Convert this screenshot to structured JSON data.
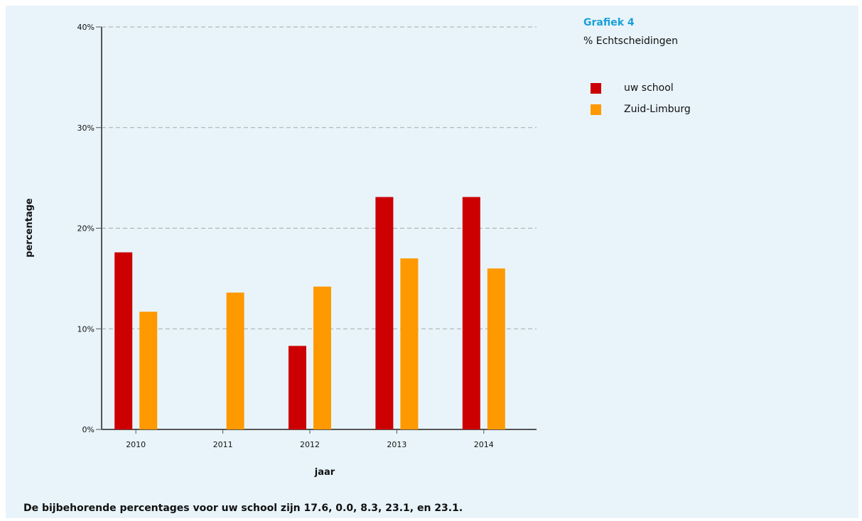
{
  "side": {
    "title": "Grafiek 4",
    "subtitle": "% Echtscheidingen"
  },
  "legend": [
    {
      "label": "uw school",
      "color": "#cc0000"
    },
    {
      "label": "Zuid-Limburg",
      "color": "#ff9900"
    }
  ],
  "footnote": "De bijbehorende percentages voor uw school zijn 17.6, 0.0, 8.3, 23.1, en 23.1.",
  "chart_data": {
    "type": "bar",
    "categories": [
      "2010",
      "2011",
      "2012",
      "2013",
      "2014"
    ],
    "series": [
      {
        "name": "uw school",
        "color": "#cc0000",
        "values": [
          17.6,
          0.0,
          8.3,
          23.1,
          23.1
        ]
      },
      {
        "name": "Zuid-Limburg",
        "color": "#ff9900",
        "values": [
          11.7,
          13.6,
          14.2,
          17.0,
          16.0
        ]
      }
    ],
    "xlabel": "jaar",
    "ylabel": "percentage",
    "ylim": [
      0,
      40
    ],
    "yticks": [
      0,
      10,
      20,
      30,
      40
    ],
    "ytick_labels": [
      "0%",
      "10%",
      "20%",
      "30%",
      "40%"
    ],
    "grid": true,
    "legend_position": "right"
  }
}
